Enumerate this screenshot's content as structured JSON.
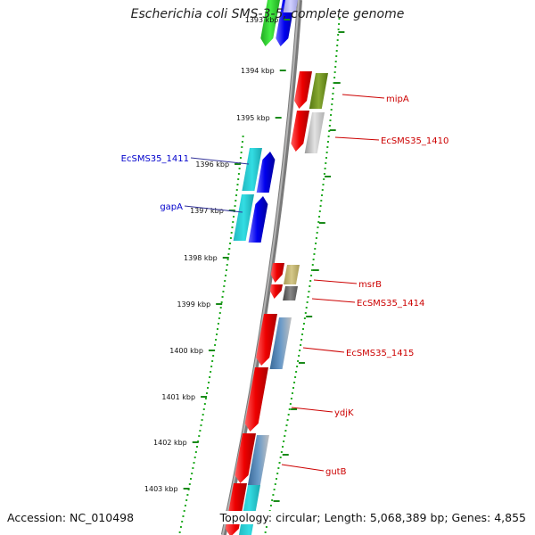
{
  "title": "Escherichia coli SMS-3-5, complete genome",
  "accession": "Accession: NC_010498",
  "summary": "Topology: circular; Length: 5,068,389 bp; Genes: 4,855",
  "colors": {
    "backbone": "#8a8a8a",
    "tick": "#1a8a1a",
    "dot": "#22aa22",
    "label_forward": "#0000cc",
    "label_reverse": "#cc0000",
    "leader": "#cc0000",
    "leader_forward": "#333399"
  },
  "ticks": [
    {
      "label": "1393 kbp"
    },
    {
      "label": "1394 kbp"
    },
    {
      "label": "1395 kbp"
    },
    {
      "label": "1396 kbp"
    },
    {
      "label": "1397 kbp"
    },
    {
      "label": "1398 kbp"
    },
    {
      "label": "1399 kbp"
    },
    {
      "label": "1400 kbp"
    },
    {
      "label": "1401 kbp"
    },
    {
      "label": "1402 kbp"
    },
    {
      "label": "1403 kbp"
    }
  ],
  "gene_labels": [
    {
      "name": "mipA",
      "side": "right"
    },
    {
      "name": "EcSMS35_1410",
      "side": "right"
    },
    {
      "name": "EcSMS35_1411",
      "side": "left"
    },
    {
      "name": "gapA",
      "side": "left"
    },
    {
      "name": "msrB",
      "side": "right"
    },
    {
      "name": "EcSMS35_1414",
      "side": "right"
    },
    {
      "name": "EcSMS35_1415",
      "side": "right"
    },
    {
      "name": "ydjK",
      "side": "right"
    },
    {
      "name": "gutB",
      "side": "right"
    }
  ]
}
